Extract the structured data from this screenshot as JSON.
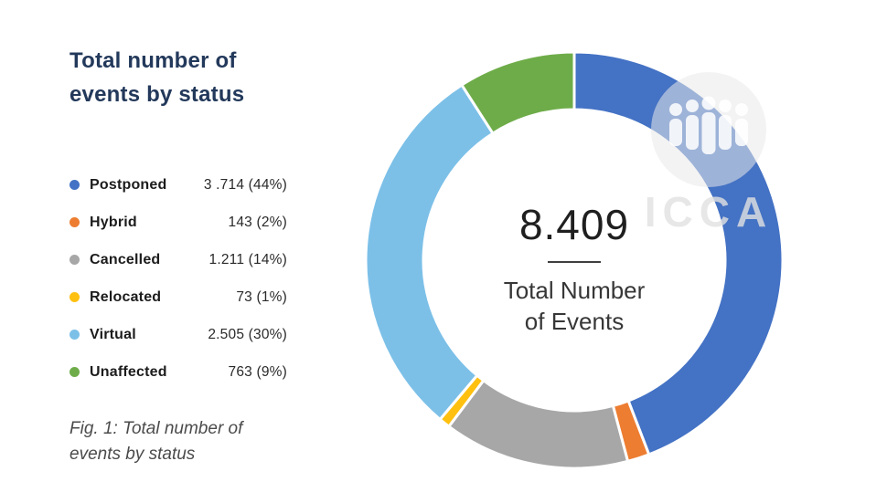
{
  "title": {
    "line1": "Total number of",
    "line2": "events by status"
  },
  "legend": {
    "items": [
      {
        "label": "Postponed",
        "value_text": "3 .714 (44%)",
        "color": "#4472C4"
      },
      {
        "label": "Hybrid",
        "value_text": "143 (2%)",
        "color": "#ED7D31"
      },
      {
        "label": "Cancelled",
        "value_text": "1.211 (14%)",
        "color": "#A7A7A7"
      },
      {
        "label": "Relocated",
        "value_text": "73 (1%)",
        "color": "#FFC010"
      },
      {
        "label": "Virtual",
        "value_text": "2.505 (30%)",
        "color": "#7CC0E8"
      },
      {
        "label": "Unaffected",
        "value_text": "763 (9%)",
        "color": "#6EAC49"
      }
    ]
  },
  "center": {
    "total": "8.409",
    "label_line1": "Total Number",
    "label_line2": "of Events"
  },
  "caption": {
    "line1": "Fig. 1: Total number of",
    "line2": "events by status"
  },
  "watermark": {
    "text": "ICCA"
  },
  "chart_data": {
    "type": "pie",
    "subtype": "donut",
    "title": "Total number of events by status",
    "labels": [
      "Postponed",
      "Hybrid",
      "Cancelled",
      "Relocated",
      "Virtual",
      "Unaffected"
    ],
    "values": [
      3714,
      143,
      1211,
      73,
      2505,
      763
    ],
    "percent_labels": [
      "44%",
      "2%",
      "14%",
      "1%",
      "30%",
      "9%"
    ],
    "colors": [
      "#4472C4",
      "#ED7D31",
      "#A7A7A7",
      "#FFC010",
      "#7CC0E8",
      "#6EAC49"
    ],
    "total": 8409,
    "center_text": "8.409",
    "center_label": "Total Number of Events",
    "start_angle_deg": 0,
    "direction": "clockwise",
    "legend_position": "left",
    "outer_radius_px": 228,
    "inner_radius_px": 165
  }
}
